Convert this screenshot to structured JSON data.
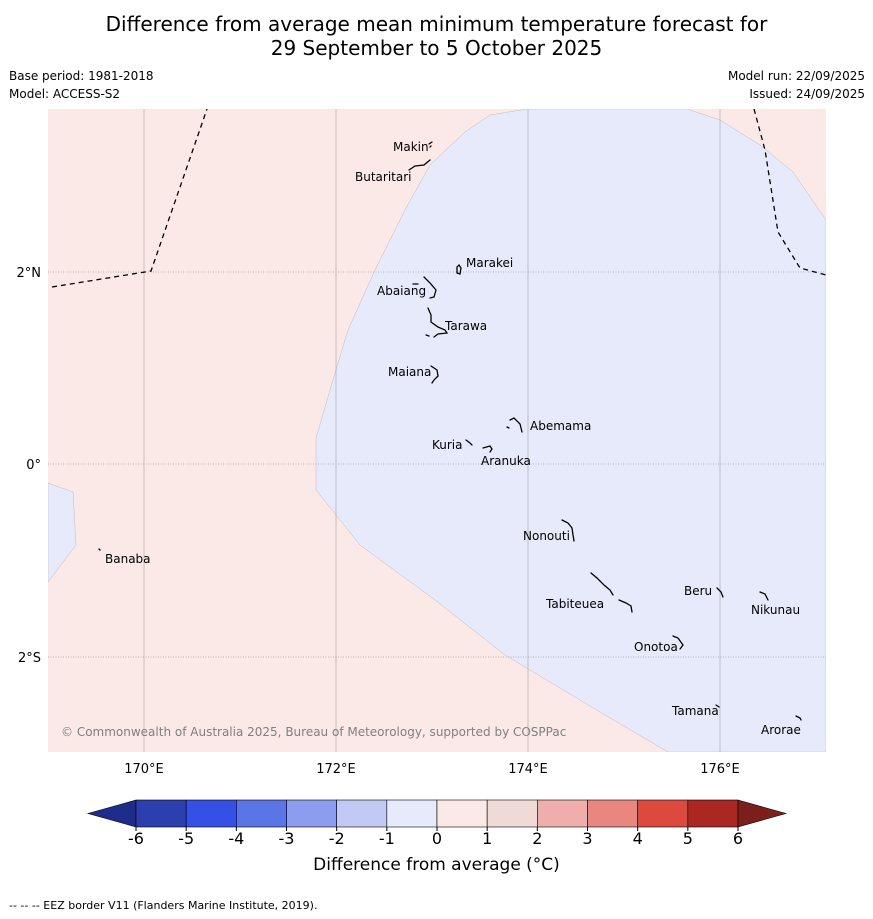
{
  "title": {
    "line1": "Difference from average mean minimum temperature forecast for",
    "line2": "29 September to 5 October 2025"
  },
  "meta": {
    "base_period": "Base period: 1981-2018",
    "model": "Model: ACCESS-S2",
    "model_run": "Model run: 22/09/2025",
    "issued": "Issued: 24/09/2025"
  },
  "axes": {
    "lat_labels": [
      "2°N",
      "0°",
      "2°S"
    ],
    "lon_labels": [
      "170°E",
      "172°E",
      "174°E",
      "176°E"
    ]
  },
  "places": [
    "Makin",
    "Butaritari",
    "Marakei",
    "Abaiang",
    "Tarawa",
    "Maiana",
    "Abemama",
    "Kuria",
    "Aranuka",
    "Banaba",
    "Nonouti",
    "Tabiteuea",
    "Beru",
    "Nikunau",
    "Onotoa",
    "Tamana",
    "Arorae"
  ],
  "copyright": "© Commonwealth of Australia 2025, Bureau of Meteorology, supported by COSPPac",
  "legend": {
    "ticks": [
      "-6",
      "-5",
      "-4",
      "-3",
      "-2",
      "-1",
      "0",
      "1",
      "2",
      "3",
      "4",
      "5",
      "6"
    ],
    "colors": [
      "#1e2c8c",
      "#2b3faf",
      "#3550e4",
      "#5b74e6",
      "#8c9cee",
      "#c1c9f4",
      "#e6eafb",
      "#fbe9e7",
      "#f0dad7",
      "#efaeaa",
      "#e8867f",
      "#dc4a3e",
      "#ab2822",
      "#7c1f1a"
    ],
    "label": "Difference from average (°C)"
  },
  "footnote": "--  --  -- EEZ border V11 (Flanders Marine Institute, 2019)."
}
